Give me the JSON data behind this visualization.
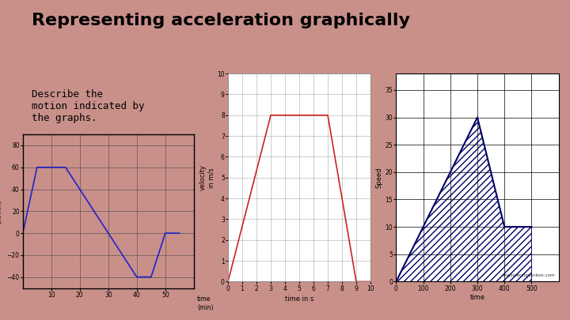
{
  "bg_color": "#c9908a",
  "title": "Representing acceleration graphically",
  "title_fontsize": 16,
  "subtitle": "Describe the\nmotion indicated by\nthe graphs.",
  "subtitle_fontsize": 9,
  "graph1": {
    "x": [
      0,
      5,
      13,
      15,
      30,
      40,
      45,
      50,
      55
    ],
    "y": [
      0,
      60,
      60,
      60,
      0,
      -40,
      -40,
      0,
      0
    ],
    "color": "#2222cc",
    "linewidth": 1.2,
    "xlabel": "time\n(min)",
    "ylabel": "velocity\n(m/min)",
    "xlim": [
      0,
      60
    ],
    "ylim": [
      -50,
      90
    ],
    "xticks": [
      10,
      20,
      30,
      40,
      50
    ],
    "yticks": [
      -40,
      -20,
      0,
      20,
      40,
      60,
      80
    ],
    "bg": "#c9908a",
    "grid": true
  },
  "graph2": {
    "x": [
      0,
      3,
      5,
      7,
      9,
      10
    ],
    "y": [
      0,
      8,
      8,
      8,
      0,
      0
    ],
    "color": "#cc2222",
    "linewidth": 1.2,
    "xlabel": "time in s",
    "ylabel": "velocity\nin m/s",
    "xlim": [
      0,
      10
    ],
    "ylim": [
      0,
      10
    ],
    "xticks": [
      0,
      1,
      2,
      3,
      4,
      5,
      6,
      7,
      8,
      9,
      10
    ],
    "yticks": [
      0,
      1,
      2,
      3,
      4,
      5,
      6,
      7,
      8,
      9,
      10
    ],
    "bg": "#ffffff",
    "grid": true
  },
  "graph3": {
    "x": [
      0,
      100,
      200,
      300,
      400,
      500
    ],
    "y": [
      0,
      10,
      20,
      30,
      10,
      10
    ],
    "fill_x": [
      0,
      100,
      200,
      300,
      400,
      500,
      500,
      0
    ],
    "fill_y": [
      0,
      10,
      20,
      30,
      10,
      10,
      0,
      0
    ],
    "color": "#000066",
    "linewidth": 1.5,
    "xlabel": "time",
    "ylabel": "Speed",
    "xlim": [
      0,
      600
    ],
    "ylim": [
      0,
      38
    ],
    "xticks": [
      0,
      100,
      200,
      300,
      400,
      500
    ],
    "yticks": [
      0,
      5,
      10,
      15,
      20,
      25,
      30,
      35
    ],
    "bg": "#ffffff",
    "watermark": "engineeringdocbox.com"
  }
}
